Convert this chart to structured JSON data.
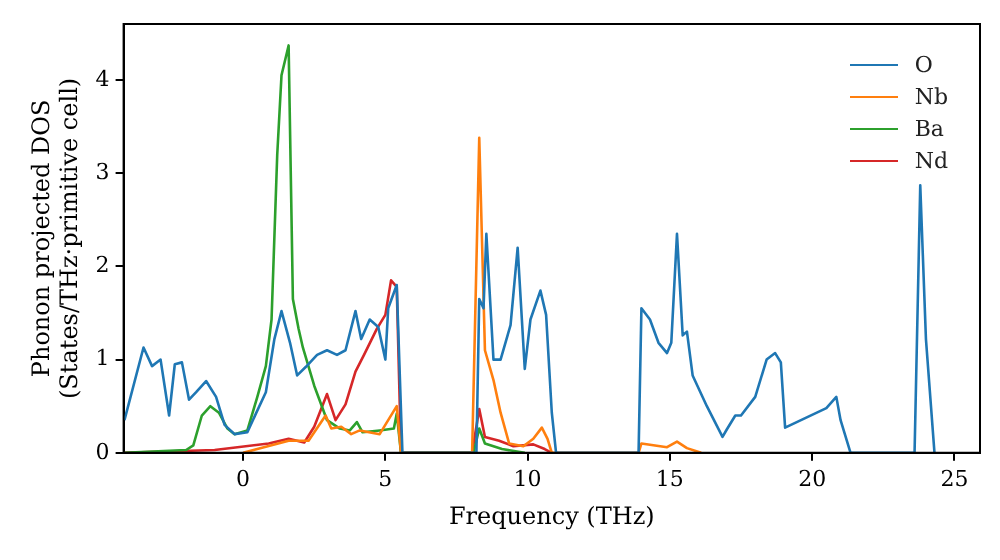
{
  "chart_data": {
    "type": "line",
    "xlabel": "Frequency (THz)",
    "ylabel": "Phonon projected DOS\n(States/THz·primitive cell)",
    "xlim": [
      -4.2,
      25.9
    ],
    "ylim": [
      0,
      4.6
    ],
    "xticks": [
      0,
      5,
      10,
      15,
      20,
      25
    ],
    "yticks": [
      0,
      1,
      2,
      3,
      4
    ],
    "grid": false,
    "legend": "top right",
    "marker": "none",
    "line_style": "solid",
    "series": [
      {
        "name": "O",
        "color": "#1f77b4",
        "x": [
          -4.17,
          -3.5,
          -3.2,
          -2.9,
          -2.6,
          -2.4,
          -2.15,
          -1.9,
          -1.65,
          -1.3,
          -0.95,
          -0.65,
          -0.3,
          0.15,
          0.45,
          0.8,
          1.1,
          1.35,
          1.65,
          1.9,
          2.2,
          2.6,
          2.95,
          3.3,
          3.6,
          3.95,
          4.15,
          4.45,
          4.75,
          5.0,
          5.1,
          5.4,
          5.6,
          8.2,
          8.3,
          8.45,
          8.55,
          8.8,
          9.05,
          9.4,
          9.65,
          9.9,
          10.1,
          10.45,
          10.65,
          10.85,
          11.0,
          13.9,
          14.0,
          14.3,
          14.6,
          14.9,
          15.05,
          15.25,
          15.45,
          15.6,
          15.8,
          16.3,
          16.85,
          17.0,
          17.3,
          17.5,
          18.0,
          18.4,
          18.7,
          18.9,
          19.05,
          20.5,
          20.85,
          21.0,
          21.35,
          23.6,
          23.8,
          24.0,
          24.3
        ],
        "values": [
          0.35,
          1.13,
          0.93,
          1.0,
          0.4,
          0.95,
          0.97,
          0.57,
          0.65,
          0.77,
          0.6,
          0.3,
          0.2,
          0.22,
          0.42,
          0.65,
          1.22,
          1.52,
          1.18,
          0.83,
          0.92,
          1.05,
          1.1,
          1.05,
          1.1,
          1.52,
          1.22,
          1.43,
          1.35,
          1.0,
          1.55,
          1.8,
          0,
          0,
          1.65,
          1.55,
          2.35,
          1.0,
          1.0,
          1.37,
          2.2,
          0.9,
          1.43,
          1.74,
          1.48,
          0.43,
          0,
          0,
          1.55,
          1.43,
          1.18,
          1.07,
          1.18,
          2.35,
          1.26,
          1.3,
          0.83,
          0.5,
          0.17,
          0.25,
          0.4,
          0.4,
          0.6,
          1.0,
          1.07,
          0.97,
          0.27,
          0.48,
          0.6,
          0.35,
          0,
          0,
          2.87,
          1.22,
          0
        ]
      },
      {
        "name": "Nb",
        "color": "#ff7f0e",
        "x": [
          0.0,
          0.5,
          1.6,
          2.3,
          2.9,
          3.1,
          3.45,
          3.8,
          4.1,
          4.8,
          5.4,
          5.55,
          8.05,
          8.3,
          8.5,
          8.8,
          9.05,
          9.35,
          9.85,
          10.2,
          10.5,
          10.7,
          10.85,
          13.9,
          14.0,
          14.9,
          15.25,
          15.6,
          16.1
        ],
        "values": [
          0,
          0.04,
          0.13,
          0.13,
          0.4,
          0.26,
          0.28,
          0.2,
          0.24,
          0.2,
          0.5,
          0,
          0,
          3.38,
          1.1,
          0.78,
          0.43,
          0.1,
          0.07,
          0.15,
          0.27,
          0.15,
          0,
          0,
          0.1,
          0.06,
          0.12,
          0.05,
          0
        ]
      },
      {
        "name": "Ba",
        "color": "#2ca02c",
        "x": [
          -4.17,
          -2.0,
          -1.75,
          -1.45,
          -1.15,
          -0.85,
          -0.55,
          -0.3,
          0.15,
          0.5,
          0.8,
          1.0,
          1.2,
          1.35,
          1.6,
          1.75,
          1.95,
          2.1,
          2.5,
          2.95,
          3.4,
          3.75,
          4.0,
          4.2,
          4.8,
          5.3,
          5.4,
          5.55,
          8.1,
          8.3,
          8.5,
          9.1,
          9.9
        ],
        "values": [
          0,
          0.03,
          0.08,
          0.4,
          0.5,
          0.43,
          0.26,
          0.2,
          0.24,
          0.6,
          0.93,
          1.43,
          3.2,
          4.05,
          4.37,
          1.65,
          1.33,
          1.13,
          0.72,
          0.35,
          0.26,
          0.24,
          0.33,
          0.22,
          0.24,
          0.26,
          0.42,
          0,
          0,
          0.26,
          0.1,
          0.04,
          0
        ]
      },
      {
        "name": "Nd",
        "color": "#d62728",
        "x": [
          -4.17,
          -1.0,
          0.9,
          1.6,
          2.15,
          2.5,
          2.95,
          3.25,
          3.6,
          3.95,
          4.25,
          4.7,
          5.0,
          5.2,
          5.4,
          5.55,
          8.05,
          8.3,
          8.5,
          9.0,
          9.5,
          10.2,
          10.6,
          10.85
        ],
        "values": [
          0,
          0.03,
          0.1,
          0.15,
          0.11,
          0.28,
          0.63,
          0.35,
          0.52,
          0.87,
          1.05,
          1.33,
          1.48,
          1.85,
          1.78,
          0,
          0,
          0.47,
          0.17,
          0.13,
          0.07,
          0.09,
          0.04,
          0
        ]
      }
    ]
  }
}
